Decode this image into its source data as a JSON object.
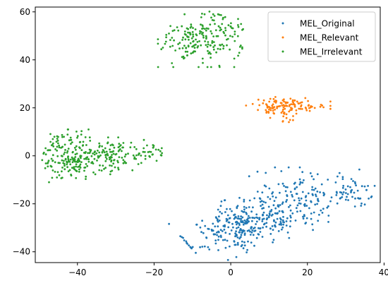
{
  "chart_data": {
    "type": "scatter",
    "xlim": [
      -51,
      39
    ],
    "ylim": [
      -44.5,
      62
    ],
    "xticks": [
      -40,
      -20,
      0,
      20,
      40
    ],
    "yticks": [
      -40,
      -20,
      0,
      20,
      40,
      60
    ],
    "xtick_labels": [
      "−40",
      "−20",
      "0",
      "20",
      "40"
    ],
    "ytick_labels": [
      "−40",
      "−20",
      "0",
      "20",
      "40",
      "60"
    ],
    "grid": false,
    "legend": {
      "placement": "top-right",
      "entries": [
        "MEL_Original",
        "MEL_Relevant",
        "MEL_Irrelevant"
      ]
    },
    "series": [
      {
        "name": "MEL_Original",
        "color": "#1f77b4",
        "clusters": [
          {
            "center": [
              4,
              -28
            ],
            "spread": [
              8,
              5
            ],
            "count": 330,
            "angle_deg": 30
          },
          {
            "center": [
              18,
              -18
            ],
            "spread": [
              6,
              6
            ],
            "count": 110,
            "angle_deg": 0
          },
          {
            "center": [
              31,
              -14
            ],
            "spread": [
              4,
              4
            ],
            "count": 60,
            "angle_deg": 20
          }
        ]
      },
      {
        "name": "MEL_Relevant",
        "color": "#ff7f0e",
        "clusters": [
          {
            "center": [
              15,
              21
            ],
            "spread": [
              5,
              1.6
            ],
            "count": 110,
            "angle_deg": 0
          },
          {
            "center": [
              12,
              18
            ],
            "spread": [
              2,
              2
            ],
            "count": 20,
            "angle_deg": 0
          }
        ]
      },
      {
        "name": "MEL_Irrelevant",
        "color": "#2ca02c",
        "clusters": [
          {
            "center": [
              -42,
              0
            ],
            "spread": [
              3.5,
              5
            ],
            "count": 180,
            "angle_deg": 0
          },
          {
            "center": [
              -31,
              0
            ],
            "spread": [
              4.5,
              3.5
            ],
            "count": 130,
            "angle_deg": 0
          },
          {
            "center": [
              -21,
              1
            ],
            "spread": [
              2,
              2
            ],
            "count": 25,
            "angle_deg": 0
          },
          {
            "center": [
              -8,
              48
            ],
            "spread": [
              5,
              5
            ],
            "count": 180,
            "angle_deg": 0
          },
          {
            "center": [
              -2,
              55
            ],
            "spread": [
              2.5,
              2.5
            ],
            "count": 25,
            "angle_deg": 0
          }
        ]
      }
    ]
  }
}
